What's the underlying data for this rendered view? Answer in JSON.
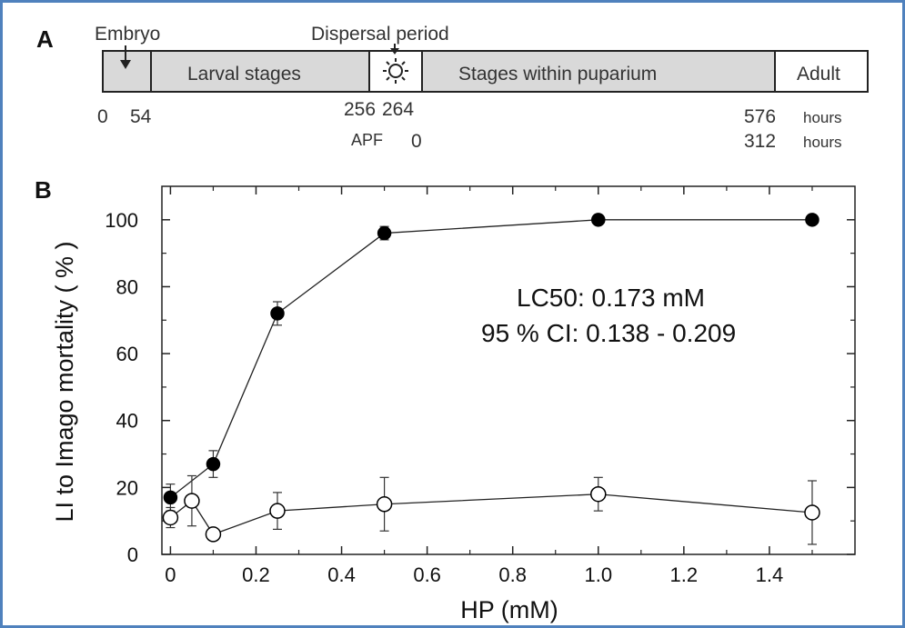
{
  "colors": {
    "frame_border": "#4f81bd",
    "stage_fill": "#d9d9d9",
    "stage_stroke": "#222222",
    "adult_fill": "#ffffff",
    "series_filled": "#000000",
    "series_open": "#ffffff",
    "line": "#222222"
  },
  "panel_a": {
    "letter": "A",
    "callouts": {
      "embryo": "Embryo",
      "dispersal": "Dispersal period"
    },
    "stages": {
      "embryo": "",
      "larval": "Larval stages",
      "dispersal": "",
      "within_puparium": "Stages within puparium",
      "adult": "Adult"
    },
    "icons": {
      "embryo_arrow": "arrow-down-icon",
      "dispersal_arrow": "arrow-down-icon",
      "dispersal_symbol": "sun-icon"
    },
    "time_labels": {
      "t0": "0",
      "t54": "54",
      "t256": "256",
      "t264": "264",
      "t576": "576",
      "hours": "hours",
      "apf": "APF",
      "apf_zero": "0",
      "t312": "312",
      "hours2": "hours"
    }
  },
  "panel_b": {
    "letter": "B",
    "annotation_line1": "LC50: 0.173 mM",
    "annotation_line2": "95 % CI: 0.138 - 0.209"
  },
  "chart_data": {
    "type": "line",
    "title": "",
    "xlabel": "HP (mM)",
    "ylabel": "LI to Imago mortality ( % )",
    "xlim": [
      -0.02,
      1.6
    ],
    "ylim": [
      0,
      110
    ],
    "x_ticks": [
      "0",
      "0.2",
      "0.4",
      "0.6",
      "0.8",
      "1.0",
      "1.2",
      "1.4"
    ],
    "x_tick_values": [
      0,
      0.2,
      0.4,
      0.6,
      0.8,
      1.0,
      1.2,
      1.4
    ],
    "y_ticks": [
      "0",
      "20",
      "40",
      "60",
      "80",
      "100"
    ],
    "y_tick_values": [
      0,
      20,
      40,
      60,
      80,
      100
    ],
    "grid": false,
    "series": [
      {
        "marker": "filled-circle",
        "points": [
          {
            "x": 0,
            "y": 17,
            "err": 4
          },
          {
            "x": 0.1,
            "y": 27,
            "err": 4
          },
          {
            "x": 0.25,
            "y": 72,
            "err": 3.5
          },
          {
            "x": 0.5,
            "y": 96,
            "err": 2
          },
          {
            "x": 1.0,
            "y": 100,
            "err": 0
          },
          {
            "x": 1.5,
            "y": 100,
            "err": 0
          }
        ]
      },
      {
        "marker": "open-circle",
        "points": [
          {
            "x": 0,
            "y": 11,
            "err": 3
          },
          {
            "x": 0.05,
            "y": 16,
            "err": 7.5
          },
          {
            "x": 0.1,
            "y": 6,
            "err": 1
          },
          {
            "x": 0.25,
            "y": 13,
            "err": 5.5
          },
          {
            "x": 0.5,
            "y": 15,
            "err": 8
          },
          {
            "x": 1.0,
            "y": 18,
            "err": 5
          },
          {
            "x": 1.5,
            "y": 12.5,
            "err": 9.5
          }
        ]
      }
    ]
  }
}
